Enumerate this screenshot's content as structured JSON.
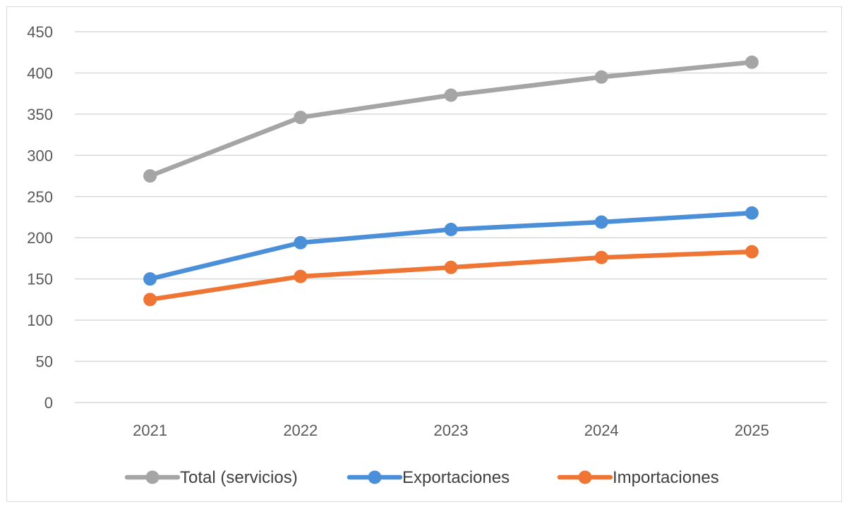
{
  "chart_data": {
    "type": "line",
    "title": "",
    "xlabel": "",
    "ylabel": "",
    "categories": [
      "2021",
      "2022",
      "2023",
      "2024",
      "2025"
    ],
    "ylim": [
      0,
      450
    ],
    "yticks": [
      0,
      50,
      100,
      150,
      200,
      250,
      300,
      350,
      400,
      450
    ],
    "grid": true,
    "legend": "bottom",
    "series": [
      {
        "name": "Total (servicios)",
        "color": "#a5a5a5",
        "values": [
          275,
          346,
          373,
          395,
          413
        ]
      },
      {
        "name": "Exportaciones",
        "color": "#4a8fd8",
        "values": [
          150,
          194,
          210,
          219,
          230
        ]
      },
      {
        "name": "Importaciones",
        "color": "#ee7533",
        "values": [
          125,
          153,
          164,
          176,
          183
        ]
      }
    ]
  }
}
